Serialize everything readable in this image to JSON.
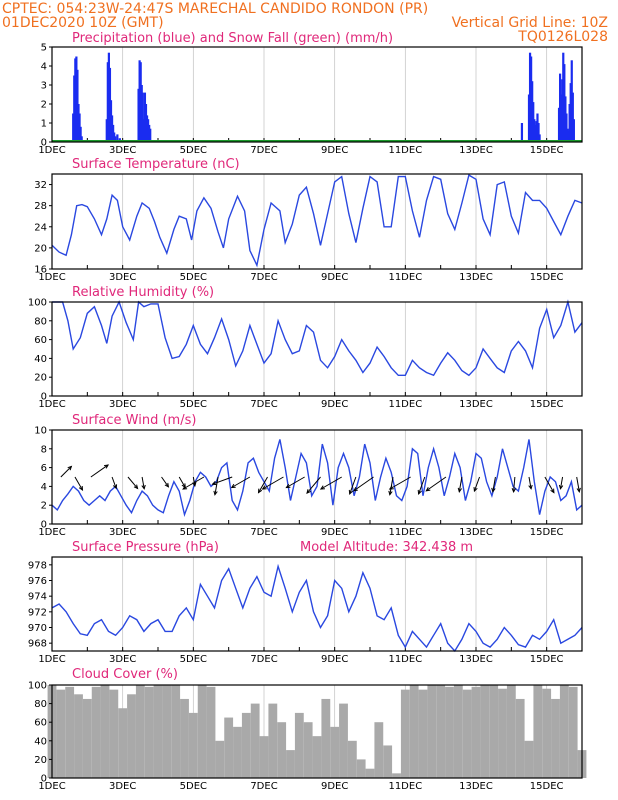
{
  "header": {
    "left_line1": "CPTEC:  054:23W-24:47S  MARECHAL CANDIDO RONDON (PR)",
    "left_line2": "01DEC2020 10Z (GMT)",
    "right_line2": "Vertical Grid Line: 10Z",
    "right_line3": "TQ0126L028"
  },
  "colors": {
    "header": "#f07020",
    "titles": "#e0287a",
    "precip": "#1a2cf0",
    "snow": "#1a9a2a",
    "line": "#2a48e0",
    "cloud": "#a9a9a9",
    "arrow": "#000000"
  },
  "chart_data": [
    {
      "id": "precip",
      "type": "bar",
      "title": "Precipitation (blue) and Snow Fall (green) (mm/h)",
      "ylim": [
        0,
        5
      ],
      "yticks": [
        0,
        1,
        2,
        3,
        4,
        5
      ],
      "xlim": [
        1,
        16
      ],
      "xticks": [
        "1DEC",
        "3DEC",
        "5DEC",
        "7DEC",
        "9DEC",
        "11DEC",
        "13DEC",
        "15DEC"
      ],
      "series": [
        {
          "name": "Precipitation",
          "color": "#1a2cf0",
          "x": [
            1.6,
            1.63,
            1.66,
            1.69,
            1.72,
            1.75,
            1.78,
            1.81,
            1.84,
            2.55,
            2.58,
            2.61,
            2.64,
            2.67,
            2.7,
            2.73,
            2.76,
            2.79,
            2.85,
            2.92,
            3.45,
            3.48,
            3.51,
            3.54,
            3.57,
            3.6,
            3.63,
            3.66,
            3.69,
            3.72,
            3.75,
            3.78,
            14.3,
            14.5,
            14.53,
            14.56,
            14.59,
            14.62,
            14.65,
            14.68,
            14.71,
            14.74,
            14.77,
            14.8,
            15.35,
            15.38,
            15.41,
            15.44,
            15.47,
            15.5,
            15.53,
            15.56,
            15.59,
            15.62,
            15.65,
            15.68,
            15.71,
            15.74,
            15.77
          ],
          "values": [
            1.5,
            3.5,
            4.4,
            4.5,
            3.8,
            2.0,
            1.5,
            0.8,
            0.3,
            1.2,
            4.2,
            4.7,
            3.9,
            2.2,
            1.4,
            0.9,
            0.5,
            0.3,
            0.4,
            0.2,
            2.8,
            4.3,
            4.2,
            3.0,
            2.6,
            1.2,
            2.6,
            2.0,
            1.4,
            1.2,
            0.9,
            0.7,
            1.0,
            2.5,
            4.7,
            4.5,
            3.2,
            2.1,
            1.2,
            0.9,
            1.1,
            1.5,
            1.0,
            0.4,
            1.8,
            3.6,
            2.5,
            3.3,
            4.7,
            4.1,
            2.4,
            1.5,
            0.7,
            0.6,
            2.0,
            3.1,
            4.3,
            2.6,
            1.2
          ]
        },
        {
          "name": "Snow Fall",
          "color": "#1a9a2a",
          "x": [
            1,
            16
          ],
          "values": [
            0,
            0
          ]
        }
      ]
    },
    {
      "id": "temp",
      "type": "line",
      "title": "Surface Temperature (nC)",
      "ylim": [
        16,
        34
      ],
      "yticks": [
        16,
        20,
        24,
        28,
        32
      ],
      "xlim": [
        1,
        16
      ],
      "xticks": [
        "1DEC",
        "3DEC",
        "5DEC",
        "7DEC",
        "9DEC",
        "11DEC",
        "13DEC",
        "15DEC"
      ],
      "x": [
        1.0,
        1.2,
        1.4,
        1.55,
        1.7,
        1.85,
        2.0,
        2.2,
        2.4,
        2.55,
        2.7,
        2.85,
        3.0,
        3.2,
        3.4,
        3.55,
        3.75,
        3.9,
        4.05,
        4.25,
        4.45,
        4.6,
        4.8,
        4.95,
        5.1,
        5.3,
        5.5,
        5.7,
        5.85,
        6.0,
        6.25,
        6.45,
        6.6,
        6.8,
        7.0,
        7.2,
        7.45,
        7.6,
        7.8,
        8.0,
        8.2,
        8.4,
        8.6,
        8.8,
        9.0,
        9.2,
        9.4,
        9.6,
        9.8,
        10.0,
        10.2,
        10.4,
        10.6,
        10.8,
        11.0,
        11.2,
        11.4,
        11.6,
        11.8,
        12.0,
        12.2,
        12.4,
        12.6,
        12.8,
        13.0,
        13.2,
        13.4,
        13.6,
        13.8,
        14.0,
        14.2,
        14.4,
        14.6,
        14.8,
        15.0,
        15.2,
        15.4,
        15.6,
        15.8,
        16.0
      ],
      "values": [
        20.5,
        19.2,
        18.6,
        22.5,
        28.0,
        28.2,
        27.8,
        25.5,
        22.5,
        25.5,
        30.0,
        29.0,
        24.0,
        21.5,
        26.0,
        28.5,
        27.5,
        25.0,
        22.0,
        19.0,
        23.5,
        26.0,
        25.5,
        21.5,
        27.0,
        29.5,
        27.5,
        23.0,
        20.0,
        25.5,
        29.8,
        27.0,
        19.5,
        16.7,
        23.5,
        28.5,
        27.0,
        21.0,
        24.5,
        30.0,
        31.5,
        26.5,
        20.5,
        26.5,
        32.5,
        33.5,
        26.5,
        21.0,
        27.5,
        33.5,
        32.5,
        24.0,
        24.0,
        33.5,
        33.5,
        27.0,
        22.0,
        29.0,
        33.5,
        33.0,
        26.5,
        23.5,
        28.5,
        33.8,
        33.0,
        25.5,
        22.5,
        32.0,
        32.5,
        26.0,
        22.8,
        30.5,
        29.0,
        29.0,
        27.5,
        25.0,
        22.5,
        26.0,
        29.0,
        28.5
      ]
    },
    {
      "id": "rh",
      "type": "line",
      "title": "Relative Humidity (%)",
      "ylim": [
        0,
        100
      ],
      "yticks": [
        0,
        20,
        40,
        60,
        80,
        100
      ],
      "xlim": [
        1,
        16
      ],
      "xticks": [
        "1DEC",
        "3DEC",
        "5DEC",
        "7DEC",
        "9DEC",
        "11DEC",
        "13DEC",
        "15DEC"
      ],
      "x": [
        1.0,
        1.3,
        1.45,
        1.6,
        1.8,
        2.0,
        2.2,
        2.4,
        2.55,
        2.7,
        2.9,
        3.1,
        3.3,
        3.45,
        3.6,
        3.8,
        4.0,
        4.2,
        4.4,
        4.6,
        4.8,
        5.0,
        5.2,
        5.4,
        5.6,
        5.8,
        6.0,
        6.2,
        6.4,
        6.6,
        6.8,
        7.0,
        7.2,
        7.4,
        7.6,
        7.8,
        8.0,
        8.2,
        8.4,
        8.6,
        8.8,
        9.0,
        9.2,
        9.4,
        9.6,
        9.8,
        10.0,
        10.2,
        10.4,
        10.6,
        10.8,
        11.0,
        11.2,
        11.4,
        11.6,
        11.8,
        12.0,
        12.2,
        12.4,
        12.6,
        12.8,
        13.0,
        13.2,
        13.4,
        13.6,
        13.8,
        14.0,
        14.2,
        14.4,
        14.6,
        14.8,
        15.0,
        15.2,
        15.4,
        15.6,
        15.8,
        16.0
      ],
      "values": [
        100,
        100,
        80,
        50,
        62,
        88,
        95,
        75,
        56,
        85,
        100,
        78,
        60,
        100,
        95,
        98,
        98,
        62,
        40,
        42,
        55,
        75,
        55,
        45,
        62,
        82,
        60,
        32,
        48,
        75,
        55,
        35,
        45,
        80,
        60,
        45,
        48,
        75,
        68,
        38,
        30,
        42,
        60,
        48,
        38,
        25,
        35,
        52,
        42,
        30,
        22,
        22,
        38,
        30,
        25,
        22,
        35,
        46,
        38,
        27,
        22,
        30,
        50,
        40,
        30,
        25,
        48,
        58,
        48,
        30,
        72,
        92,
        62,
        75,
        100,
        68,
        78
      ]
    },
    {
      "id": "wind",
      "type": "line",
      "title": "Surface Wind (m/s)",
      "ylim": [
        0,
        10
      ],
      "yticks": [
        0,
        2,
        4,
        6,
        8,
        10
      ],
      "xlim": [
        1,
        16
      ],
      "xticks": [
        "1DEC",
        "3DEC",
        "5DEC",
        "7DEC",
        "9DEC",
        "11DEC",
        "13DEC",
        "15DEC"
      ],
      "x": [
        1.0,
        1.15,
        1.3,
        1.45,
        1.6,
        1.75,
        1.9,
        2.05,
        2.2,
        2.35,
        2.5,
        2.65,
        2.8,
        2.95,
        3.1,
        3.25,
        3.4,
        3.55,
        3.7,
        3.85,
        4.0,
        4.15,
        4.3,
        4.45,
        4.6,
        4.75,
        4.9,
        5.05,
        5.2,
        5.35,
        5.5,
        5.65,
        5.8,
        5.95,
        6.1,
        6.25,
        6.4,
        6.55,
        6.7,
        6.85,
        7.0,
        7.15,
        7.3,
        7.45,
        7.6,
        7.75,
        7.9,
        8.05,
        8.2,
        8.35,
        8.5,
        8.65,
        8.8,
        8.95,
        9.1,
        9.25,
        9.4,
        9.55,
        9.7,
        9.85,
        10.0,
        10.15,
        10.3,
        10.45,
        10.6,
        10.75,
        10.9,
        11.05,
        11.2,
        11.35,
        11.5,
        11.65,
        11.8,
        11.95,
        12.1,
        12.25,
        12.4,
        12.55,
        12.7,
        12.85,
        13.0,
        13.15,
        13.3,
        13.45,
        13.6,
        13.75,
        13.9,
        14.05,
        14.2,
        14.35,
        14.5,
        14.65,
        14.8,
        14.95,
        15.1,
        15.25,
        15.4,
        15.55,
        15.7,
        15.85,
        16.0
      ],
      "values": [
        2.0,
        1.5,
        2.5,
        3.2,
        4.0,
        3.5,
        2.5,
        2.0,
        2.5,
        3.0,
        2.5,
        3.5,
        4.0,
        3.0,
        2.0,
        1.2,
        2.5,
        3.5,
        3.0,
        2.0,
        1.5,
        1.2,
        3.0,
        4.5,
        3.5,
        1.0,
        2.5,
        4.5,
        5.5,
        5.0,
        4.0,
        4.5,
        6.0,
        6.5,
        2.5,
        1.5,
        3.5,
        6.5,
        7.0,
        5.5,
        4.5,
        3.5,
        7.0,
        9.0,
        6.0,
        2.5,
        5.0,
        7.5,
        6.5,
        3.0,
        4.0,
        8.5,
        6.5,
        2.0,
        6.0,
        7.5,
        6.0,
        3.0,
        5.0,
        8.5,
        6.5,
        2.5,
        5.0,
        7.0,
        5.5,
        3.0,
        2.5,
        4.0,
        8.0,
        7.5,
        3.0,
        6.0,
        8.0,
        6.0,
        3.0,
        5.0,
        7.5,
        6.0,
        2.5,
        4.5,
        7.5,
        7.0,
        4.5,
        3.0,
        5.0,
        8.0,
        6.0,
        4.0,
        3.5,
        6.0,
        9.0,
        4.5,
        1.0,
        3.5,
        5.0,
        4.5,
        2.5,
        3.0,
        4.5,
        1.5,
        2.0
      ],
      "arrows": {
        "x": [
          1.25,
          1.65,
          2.1,
          2.7,
          3.15,
          3.55,
          4.1,
          4.6,
          5.0,
          5.3,
          5.7,
          6.1,
          6.6,
          7.1,
          7.55,
          8.15,
          8.6,
          9.2,
          9.6,
          10.1,
          10.65,
          11.15,
          11.55,
          12.15,
          12.6,
          13.1,
          13.55,
          14.1,
          14.5,
          14.95,
          15.45,
          15.85
        ],
        "dir_deg": [
          45,
          -60,
          35,
          -70,
          -50,
          -80,
          -55,
          -60,
          -80,
          -150,
          -100,
          200,
          210,
          -120,
          210,
          210,
          -130,
          210,
          -110,
          215,
          -100,
          210,
          -110,
          215,
          -100,
          -110,
          -100,
          -95,
          -80,
          -60,
          -100,
          -80
        ],
        "speed": [
          3,
          3,
          5,
          2,
          3,
          2,
          2,
          2,
          1,
          6,
          4,
          5,
          5,
          4,
          6,
          5,
          5,
          6,
          4,
          6,
          4,
          6,
          4,
          6,
          3,
          3,
          3,
          3,
          2,
          4,
          2,
          3
        ]
      }
    },
    {
      "id": "pressure",
      "type": "line",
      "title": "Surface Pressure (hPa)",
      "annotation": "Model Altitude: 342.438 m",
      "ylim": [
        967,
        979
      ],
      "yticks": [
        968,
        970,
        972,
        974,
        976,
        978
      ],
      "xlim": [
        1,
        16
      ],
      "xticks": [
        "1DEC",
        "3DEC",
        "5DEC",
        "7DEC",
        "9DEC",
        "11DEC",
        "13DEC",
        "15DEC"
      ],
      "x": [
        1.0,
        1.2,
        1.4,
        1.6,
        1.8,
        2.0,
        2.2,
        2.4,
        2.6,
        2.8,
        3.0,
        3.2,
        3.4,
        3.6,
        3.8,
        4.0,
        4.2,
        4.4,
        4.6,
        4.8,
        5.0,
        5.2,
        5.4,
        5.6,
        5.8,
        6.0,
        6.2,
        6.4,
        6.6,
        6.8,
        7.0,
        7.2,
        7.4,
        7.6,
        7.8,
        8.0,
        8.2,
        8.4,
        8.6,
        8.8,
        9.0,
        9.2,
        9.4,
        9.6,
        9.8,
        10.0,
        10.2,
        10.4,
        10.6,
        10.8,
        11.0,
        11.2,
        11.4,
        11.6,
        11.8,
        12.0,
        12.2,
        12.4,
        12.6,
        12.8,
        13.0,
        13.2,
        13.4,
        13.6,
        13.8,
        14.0,
        14.2,
        14.4,
        14.6,
        14.8,
        15.0,
        15.2,
        15.4,
        15.6,
        15.8,
        16.0
      ],
      "values": [
        972.5,
        973.0,
        972.0,
        970.5,
        969.2,
        969.0,
        970.5,
        971.0,
        969.5,
        969.0,
        970.0,
        971.5,
        971.0,
        969.5,
        970.5,
        971.0,
        969.5,
        969.5,
        971.5,
        972.5,
        971.0,
        975.5,
        974.0,
        972.5,
        976.0,
        977.5,
        975.0,
        972.5,
        975.0,
        976.5,
        974.5,
        974.0,
        977.8,
        975.0,
        972.0,
        974.5,
        976.0,
        972.0,
        970.0,
        971.5,
        976.0,
        975.0,
        972.0,
        974.0,
        977.0,
        975.0,
        971.5,
        971.0,
        972.5,
        969.0,
        967.5,
        969.5,
        968.5,
        967.5,
        969.0,
        970.5,
        968.0,
        967.0,
        968.5,
        970.5,
        969.5,
        968.0,
        967.5,
        968.5,
        970.0,
        969.0,
        967.8,
        967.5,
        969.0,
        968.5,
        969.5,
        971.0,
        968.0,
        968.5,
        969.0,
        970.0
      ]
    },
    {
      "id": "cloud",
      "type": "bar",
      "title": "Cloud Cover (%)",
      "ylim": [
        0,
        100
      ],
      "yticks": [
        0,
        20,
        40,
        60,
        80,
        100
      ],
      "xlim": [
        1,
        16
      ],
      "xticks": [
        "1DEC",
        "3DEC",
        "5DEC",
        "7DEC",
        "9DEC",
        "11DEC",
        "13DEC",
        "15DEC"
      ],
      "x": [
        1.0,
        1.25,
        1.5,
        1.75,
        2.0,
        2.25,
        2.5,
        2.75,
        3.0,
        3.25,
        3.5,
        3.75,
        4.0,
        4.25,
        4.5,
        4.75,
        5.0,
        5.25,
        5.5,
        5.75,
        6.0,
        6.25,
        6.5,
        6.75,
        7.0,
        7.25,
        7.5,
        7.75,
        8.0,
        8.25,
        8.5,
        8.75,
        9.0,
        9.25,
        9.5,
        9.75,
        10.0,
        10.25,
        10.5,
        10.75,
        11.0,
        11.25,
        11.5,
        11.75,
        12.0,
        12.25,
        12.5,
        12.75,
        13.0,
        13.25,
        13.5,
        13.75,
        14.0,
        14.25,
        14.5,
        14.75,
        15.0,
        15.25,
        15.5,
        15.75,
        16.0
      ],
      "values": [
        100,
        95,
        98,
        90,
        85,
        98,
        100,
        95,
        75,
        90,
        100,
        98,
        100,
        100,
        100,
        85,
        70,
        100,
        98,
        40,
        65,
        55,
        70,
        80,
        45,
        80,
        60,
        30,
        70,
        60,
        45,
        85,
        55,
        80,
        40,
        20,
        10,
        60,
        35,
        5,
        95,
        100,
        95,
        100,
        100,
        98,
        100,
        95,
        98,
        100,
        100,
        96,
        100,
        85,
        40,
        100,
        96,
        85,
        100,
        98,
        30
      ]
    }
  ]
}
